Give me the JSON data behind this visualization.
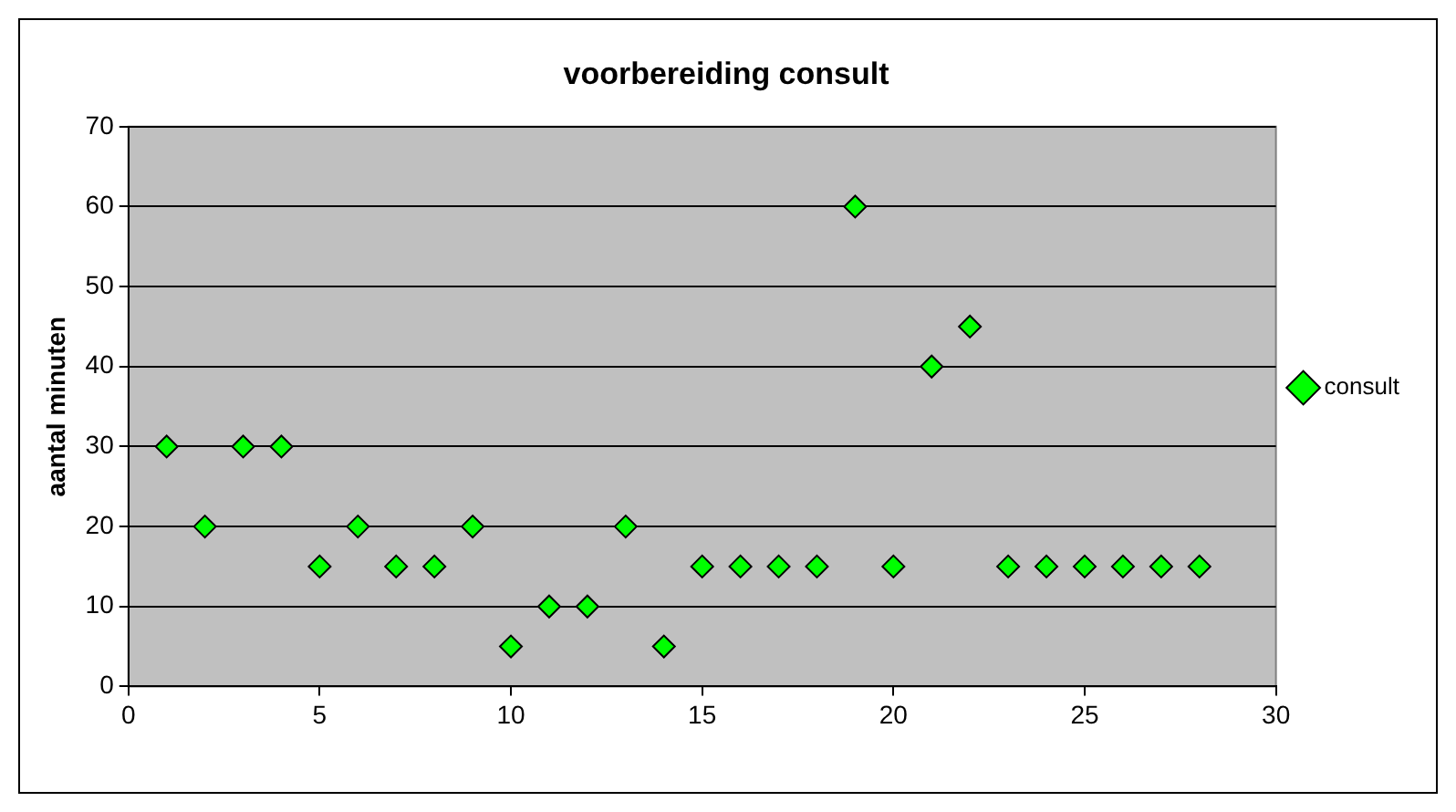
{
  "chart_data": {
    "type": "scatter",
    "title": "voorbereiding consult",
    "ylabel": "aantal minuten",
    "x": [
      1,
      2,
      3,
      4,
      5,
      6,
      7,
      8,
      9,
      10,
      11,
      12,
      13,
      14,
      15,
      16,
      17,
      18,
      19,
      20,
      21,
      22,
      23,
      24,
      25,
      26,
      27,
      28
    ],
    "series": [
      {
        "name": "consult",
        "color": "#00ff00",
        "values": [
          30,
          20,
          30,
          30,
          15,
          20,
          15,
          15,
          20,
          5,
          10,
          10,
          20,
          5,
          15,
          15,
          15,
          15,
          60,
          15,
          40,
          45,
          15,
          15,
          15,
          15,
          15,
          15
        ]
      }
    ],
    "xlim": [
      0,
      30
    ],
    "xticks": [
      0,
      5,
      10,
      15,
      20,
      25,
      30
    ],
    "ylim": [
      0,
      70
    ],
    "yticks": [
      0,
      10,
      20,
      30,
      40,
      50,
      60,
      70
    ],
    "grid": "y",
    "legend": "right",
    "marker": "diamond"
  }
}
